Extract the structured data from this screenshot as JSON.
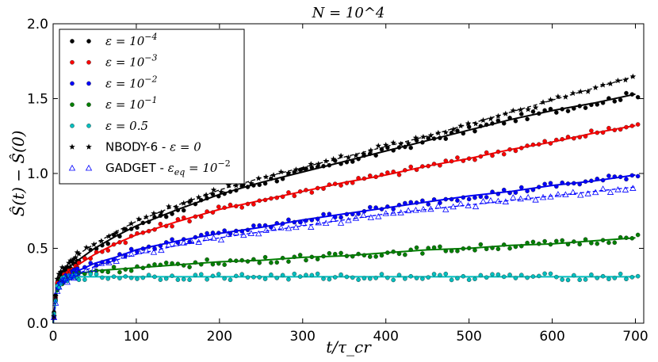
{
  "chart_data": {
    "type": "scatter",
    "title": "N = 10^4",
    "xlabel": "t/τ_cr",
    "ylabel": "Ŝ(t) − Ŝ(0)",
    "xlim": [
      0,
      710
    ],
    "ylim": [
      0,
      2.0
    ],
    "xticks": [
      0,
      100,
      200,
      300,
      400,
      500,
      600,
      700
    ],
    "yticks": [
      0.0,
      0.5,
      1.0,
      1.5,
      2.0
    ],
    "xtick_labels": [
      "0",
      "100",
      "200",
      "300",
      "400",
      "500",
      "600",
      "700"
    ],
    "ytick_labels": [
      "0.0",
      "0.5",
      "1.0",
      "1.5",
      "2.0"
    ],
    "legend_position": "top-left",
    "series": [
      {
        "name": "ε = 10^-4",
        "label_main": "ε = 10",
        "label_sup": "−4",
        "color": "#000000",
        "marker": "dot",
        "fit": "solid",
        "x": [
          0,
          5,
          10,
          20,
          30,
          50,
          75,
          100,
          150,
          200,
          250,
          300,
          350,
          400,
          450,
          500,
          550,
          600,
          650,
          700
        ],
        "y": [
          0,
          0.28,
          0.33,
          0.38,
          0.42,
          0.5,
          0.58,
          0.65,
          0.76,
          0.86,
          0.94,
          1.01,
          1.08,
          1.15,
          1.22,
          1.29,
          1.36,
          1.42,
          1.47,
          1.53
        ]
      },
      {
        "name": "ε = 10^-3",
        "label_main": "ε = 10",
        "label_sup": "−3",
        "color": "#ff0000",
        "marker": "dot",
        "fit": "solid",
        "x": [
          0,
          5,
          10,
          20,
          30,
          50,
          75,
          100,
          150,
          200,
          250,
          300,
          350,
          400,
          450,
          500,
          550,
          600,
          650,
          700
        ],
        "y": [
          0,
          0.26,
          0.3,
          0.35,
          0.39,
          0.46,
          0.53,
          0.59,
          0.68,
          0.76,
          0.82,
          0.88,
          0.94,
          0.99,
          1.05,
          1.1,
          1.16,
          1.21,
          1.27,
          1.32
        ]
      },
      {
        "name": "ε = 10^-2",
        "label_main": "ε = 10",
        "label_sup": "−2",
        "color": "#0000ff",
        "marker": "dot",
        "fit": "solid",
        "x": [
          0,
          5,
          10,
          20,
          30,
          50,
          75,
          100,
          150,
          200,
          250,
          300,
          350,
          400,
          450,
          500,
          550,
          600,
          650,
          700
        ],
        "y": [
          0,
          0.24,
          0.28,
          0.32,
          0.35,
          0.4,
          0.44,
          0.49,
          0.55,
          0.6,
          0.64,
          0.69,
          0.73,
          0.77,
          0.81,
          0.85,
          0.88,
          0.92,
          0.95,
          0.99
        ]
      },
      {
        "name": "ε = 10^-1",
        "label_main": "ε = 10",
        "label_sup": "−1",
        "color": "#008000",
        "marker": "dot",
        "fit": "solid",
        "x": [
          0,
          5,
          10,
          20,
          30,
          50,
          75,
          100,
          150,
          200,
          250,
          300,
          350,
          400,
          450,
          500,
          550,
          600,
          650,
          700
        ],
        "y": [
          0,
          0.24,
          0.28,
          0.31,
          0.33,
          0.35,
          0.36,
          0.37,
          0.39,
          0.41,
          0.42,
          0.44,
          0.45,
          0.47,
          0.49,
          0.5,
          0.52,
          0.53,
          0.55,
          0.57
        ]
      },
      {
        "name": "ε = 0.5",
        "label_main": "ε = 0.5",
        "label_sup": "",
        "color": "#00bfbf",
        "marker": "dot",
        "fit": "solid",
        "x": [
          0,
          5,
          10,
          20,
          30,
          50,
          75,
          100,
          150,
          200,
          250,
          300,
          350,
          400,
          450,
          500,
          550,
          600,
          650,
          700
        ],
        "y": [
          0,
          0.24,
          0.28,
          0.3,
          0.31,
          0.31,
          0.31,
          0.31,
          0.31,
          0.31,
          0.31,
          0.31,
          0.31,
          0.31,
          0.31,
          0.31,
          0.31,
          0.31,
          0.31,
          0.31
        ]
      },
      {
        "name": "NBODY-6 - ε = 0",
        "label_main": "NBODY-6 - ",
        "label_math": "ε = 0",
        "label_sup": "",
        "color": "#000000",
        "marker": "star",
        "fit": "dashed",
        "x": [
          0,
          5,
          10,
          20,
          30,
          50,
          75,
          100,
          150,
          200,
          250,
          300,
          350,
          400,
          450,
          500,
          550,
          600,
          650,
          700
        ],
        "y": [
          0,
          0.3,
          0.35,
          0.41,
          0.46,
          0.53,
          0.61,
          0.68,
          0.79,
          0.89,
          0.97,
          1.04,
          1.11,
          1.18,
          1.25,
          1.33,
          1.41,
          1.49,
          1.57,
          1.65
        ]
      },
      {
        "name": "GADGET - ε_eq = 10^-2",
        "label_main": "GADGET - ",
        "label_math": "ε",
        "label_sub": "eq",
        "label_tail": " = 10",
        "label_sup": "−2",
        "color": "#0000ff",
        "marker": "triangle",
        "fit": "dashed",
        "x": [
          0,
          5,
          10,
          20,
          30,
          50,
          75,
          100,
          150,
          200,
          250,
          300,
          350,
          400,
          450,
          500,
          550,
          600,
          650,
          700
        ],
        "y": [
          0,
          0.23,
          0.27,
          0.3,
          0.33,
          0.38,
          0.42,
          0.46,
          0.52,
          0.57,
          0.61,
          0.65,
          0.69,
          0.73,
          0.76,
          0.79,
          0.82,
          0.85,
          0.88,
          0.91
        ]
      }
    ]
  }
}
